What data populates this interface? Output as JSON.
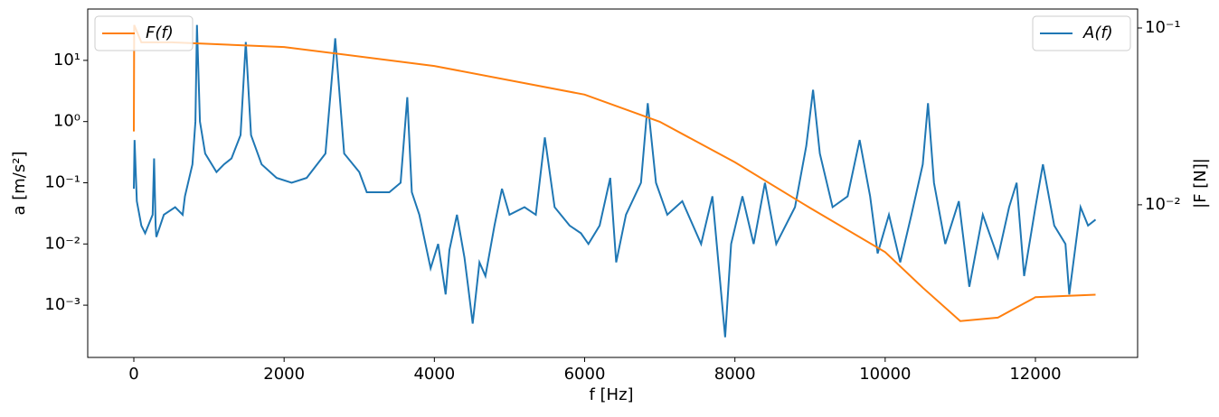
{
  "chart_data": {
    "type": "line",
    "xlabel": "f [Hz]",
    "ylabel": "a [m/s²]",
    "y2label": "|F [N]|",
    "xlim": [
      -614,
      13360
    ],
    "xticks": [
      0,
      2000,
      4000,
      6000,
      8000,
      10000,
      12000
    ],
    "ylim": [
      0.00014,
      69
    ],
    "yscale": "log",
    "yticks": [
      {
        "value": 0.001,
        "label": "10⁻³"
      },
      {
        "value": 0.01,
        "label": "10⁻²"
      },
      {
        "value": 0.1,
        "label": "10⁻¹"
      },
      {
        "value": 1,
        "label": "10⁰"
      },
      {
        "value": 10,
        "label": "10¹"
      }
    ],
    "y2lim": [
      0.00137,
      0.128
    ],
    "y2scale": "log",
    "y2ticks": [
      {
        "value": 0.01,
        "label": "10⁻²"
      },
      {
        "value": 0.1,
        "label": "10⁻¹"
      }
    ],
    "series": [
      {
        "name": "A(f)",
        "color": "#1f77b4",
        "axis": "y",
        "legend_loc": "upper right",
        "x": [
          0,
          10,
          40,
          100,
          150,
          250,
          270,
          290,
          300,
          400,
          550,
          650,
          680,
          780,
          820,
          840,
          880,
          950,
          1100,
          1200,
          1300,
          1420,
          1490,
          1560,
          1700,
          1900,
          2100,
          2300,
          2550,
          2680,
          2800,
          3000,
          3100,
          3400,
          3550,
          3640,
          3700,
          3800,
          3950,
          4050,
          4150,
          4200,
          4300,
          4400,
          4450,
          4510,
          4600,
          4680,
          4800,
          4900,
          5000,
          5200,
          5350,
          5470,
          5600,
          5800,
          5950,
          6050,
          6200,
          6340,
          6420,
          6550,
          6750,
          6840,
          6950,
          7100,
          7300,
          7550,
          7700,
          7870,
          7950,
          8100,
          8250,
          8400,
          8550,
          8800,
          8950,
          9040,
          9130,
          9300,
          9500,
          9660,
          9800,
          9900,
          10050,
          10200,
          10350,
          10500,
          10570,
          10650,
          10800,
          10980,
          11120,
          11300,
          11500,
          11650,
          11750,
          11850,
          12000,
          12100,
          12250,
          12400,
          12450,
          12600,
          12700,
          12800
        ],
        "values": [
          0.08,
          0.5,
          0.05,
          0.02,
          0.015,
          0.03,
          0.25,
          0.02,
          0.013,
          0.03,
          0.04,
          0.03,
          0.06,
          0.2,
          1,
          38,
          1,
          0.3,
          0.15,
          0.2,
          0.25,
          0.6,
          20,
          0.6,
          0.2,
          0.12,
          0.1,
          0.12,
          0.3,
          23,
          0.3,
          0.15,
          0.07,
          0.07,
          0.1,
          2.5,
          0.07,
          0.03,
          0.004,
          0.01,
          0.0015,
          0.008,
          0.03,
          0.006,
          0.002,
          0.0005,
          0.005,
          0.003,
          0.02,
          0.08,
          0.03,
          0.04,
          0.03,
          0.55,
          0.04,
          0.02,
          0.015,
          0.01,
          0.02,
          0.12,
          0.005,
          0.03,
          0.1,
          2,
          0.1,
          0.03,
          0.05,
          0.01,
          0.06,
          0.0003,
          0.01,
          0.06,
          0.01,
          0.1,
          0.01,
          0.04,
          0.4,
          3.3,
          0.3,
          0.04,
          0.06,
          0.5,
          0.06,
          0.007,
          0.03,
          0.005,
          0.03,
          0.2,
          2,
          0.1,
          0.01,
          0.05,
          0.002,
          0.03,
          0.006,
          0.04,
          0.1,
          0.003,
          0.04,
          0.2,
          0.02,
          0.01,
          0.0015,
          0.04,
          0.02,
          0.025
        ]
      },
      {
        "name": "F(f)",
        "color": "#ff7f0e",
        "axis": "y2",
        "legend_loc": "upper left",
        "x": [
          0,
          5,
          100,
          500,
          2000,
          4000,
          6000,
          7000,
          8000,
          9000,
          10000,
          10500,
          11000,
          11500,
          12000,
          12800
        ],
        "values": [
          0.026,
          0.104,
          0.083,
          0.083,
          0.078,
          0.061,
          0.042,
          0.0295,
          0.0174,
          0.0096,
          0.0054,
          0.0034,
          0.0022,
          0.0023,
          0.003,
          0.0031
        ]
      }
    ]
  }
}
